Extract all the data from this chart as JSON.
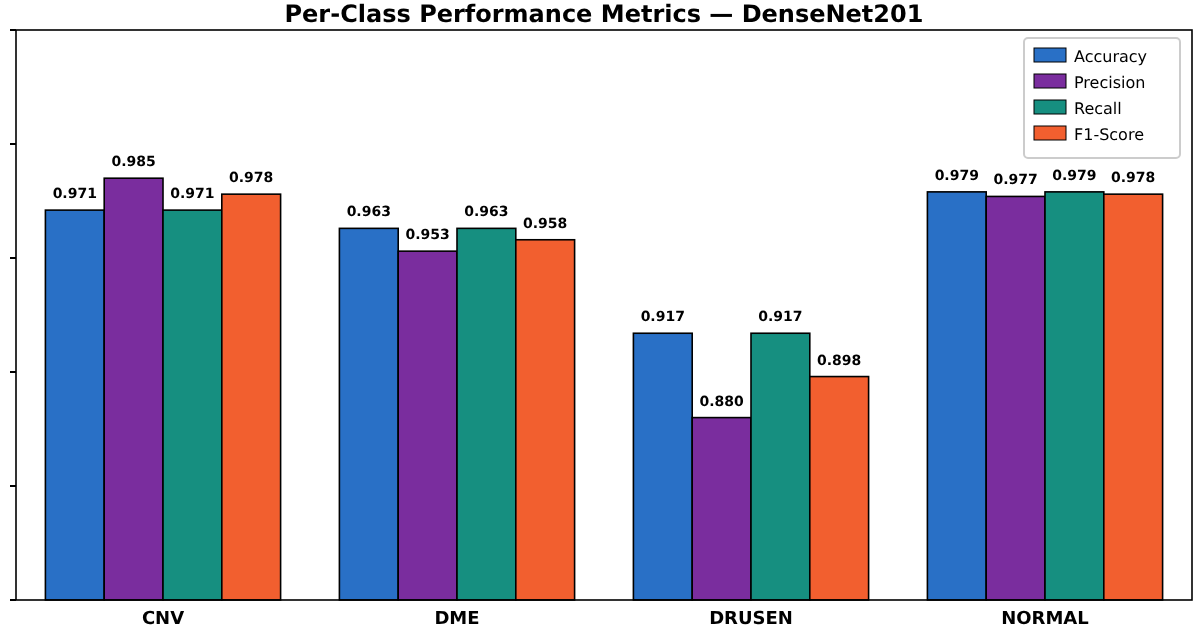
{
  "chart_data": {
    "type": "bar",
    "title": "Per-Class Performance Metrics — DenseNet201",
    "categories": [
      "CNV",
      "DME",
      "DRUSEN",
      "NORMAL"
    ],
    "series": [
      {
        "name": "Accuracy",
        "color": "#2970c6",
        "values": [
          0.971,
          0.963,
          0.917,
          0.979
        ]
      },
      {
        "name": "Precision",
        "color": "#7a2d9e",
        "values": [
          0.985,
          0.953,
          0.88,
          0.977
        ],
        "value_labels": [
          "0.985",
          "0.953",
          "0.880",
          "0.977"
        ]
      },
      {
        "name": "Recall",
        "color": "#168f80",
        "values": [
          0.971,
          0.963,
          0.917,
          0.979
        ]
      },
      {
        "name": "F1-Score",
        "color": "#f25f2f",
        "values": [
          0.978,
          0.958,
          0.898,
          0.978
        ]
      }
    ],
    "ylim": [
      0.8,
      1.05
    ],
    "yticks": [
      {
        "value": 0.8,
        "label": null
      },
      {
        "value": 0.85,
        "label": null
      },
      {
        "value": 0.9,
        "label": null
      },
      {
        "value": 0.95,
        "label": null
      },
      {
        "value": 1.0,
        "label": null
      },
      {
        "value": 1.05,
        "label": null
      }
    ],
    "tick_labels": "x",
    "data_labels": true,
    "legend": "top right",
    "grid": false
  }
}
